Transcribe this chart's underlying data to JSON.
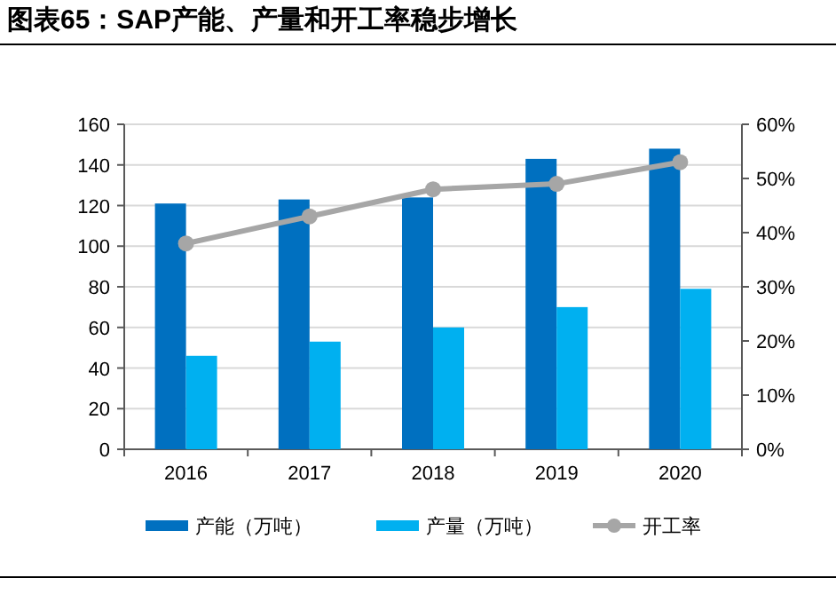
{
  "chart_data": {
    "type": "bar",
    "title": "图表65：SAP产能、产量和开工率稳步增长",
    "categories": [
      "2016",
      "2017",
      "2018",
      "2019",
      "2020"
    ],
    "series": [
      {
        "name": "产能（万吨）",
        "color": "#0070c0",
        "values": [
          121,
          123,
          124,
          143,
          148
        ]
      },
      {
        "name": "产量（万吨）",
        "color": "#00b0f0",
        "values": [
          46,
          53,
          60,
          70,
          79
        ]
      },
      {
        "name": "开工率",
        "type": "line",
        "axis": "y2",
        "color": "#a6a6a6",
        "marker": "circle",
        "values": [
          38,
          43,
          48,
          49,
          53
        ]
      }
    ],
    "ylim": [
      0,
      160
    ],
    "yticks": [
      0,
      20,
      40,
      60,
      80,
      100,
      120,
      140,
      160
    ],
    "y2lim": [
      0,
      60
    ],
    "y2ticks": [
      {
        "value": 0,
        "label": "0%"
      },
      {
        "value": 10,
        "label": "10%"
      },
      {
        "value": 20,
        "label": "20%"
      },
      {
        "value": 30,
        "label": "30%"
      },
      {
        "value": 40,
        "label": "40%"
      },
      {
        "value": 50,
        "label": "50%"
      },
      {
        "value": 60,
        "label": "60%"
      }
    ],
    "grid": "y",
    "legend": "bottom"
  }
}
